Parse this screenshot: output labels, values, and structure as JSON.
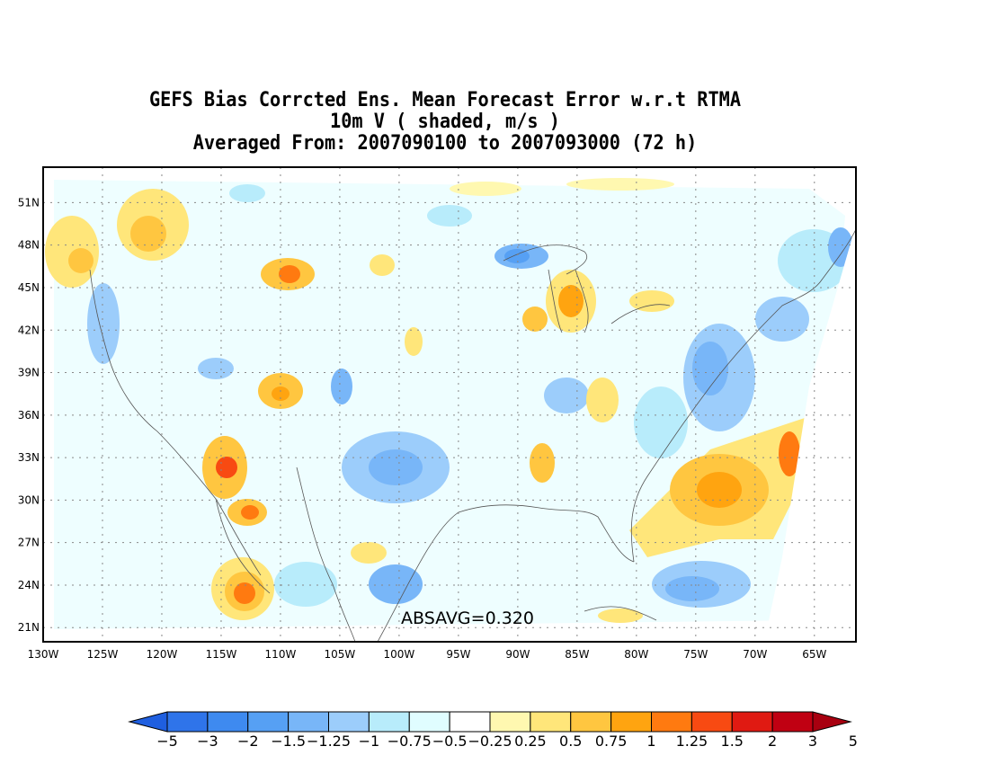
{
  "title": {
    "line1": "GEFS Bias Corrcted Ens. Mean Forecast Error w.r.t RTMA",
    "line2": "10m V ( shaded, m/s )",
    "line3": "Averaged From: 2007090100 to 2007093000 (72 h)"
  },
  "annotation": "ABSAVG=0.320",
  "map": {
    "lat_range": [
      20,
      53.5
    ],
    "lon_range": [
      -130,
      -61.5
    ],
    "lat_ticks": [
      "21N",
      "24N",
      "27N",
      "30N",
      "33N",
      "36N",
      "39N",
      "42N",
      "45N",
      "48N",
      "51N"
    ],
    "lon_ticks": [
      "130W",
      "125W",
      "120W",
      "115W",
      "110W",
      "105W",
      "100W",
      "95W",
      "90W",
      "85W",
      "80W",
      "75W",
      "70W",
      "65W"
    ],
    "grid": "dotted"
  },
  "colorbar": {
    "labels": [
      "−5",
      "−3",
      "−2",
      "−1.5",
      "−1.25",
      "−1",
      "−0.75",
      "−0.5",
      "−0.25",
      "0.25",
      "0.5",
      "0.75",
      "1",
      "1.25",
      "1.5",
      "2",
      "3",
      "5"
    ],
    "colors": [
      "#1f5fe0",
      "#2f74ea",
      "#3e8af0",
      "#56a0f4",
      "#78b6f8",
      "#9ccdfb",
      "#b8ecfb",
      "#e0fdff",
      "#ffffff",
      "#fff8b0",
      "#ffe67a",
      "#ffc640",
      "#ffa410",
      "#ff7a10",
      "#f84a12",
      "#e01a12",
      "#c00012",
      "#a80010"
    ]
  }
}
